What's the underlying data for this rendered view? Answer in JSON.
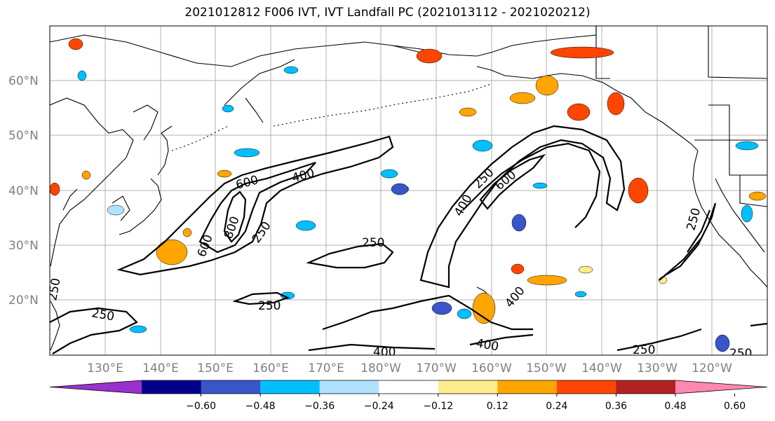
{
  "title": "2021012812 F006 IVT, IVT Landfall PC (2021013112 - 2021020212)",
  "map": {
    "projection": "PlateCarree",
    "extent": {
      "lon_min": 120,
      "lon_max": 250,
      "lat_min": 10,
      "lat_max": 70
    },
    "grid": true,
    "lat_labels": [
      "20°N",
      "30°N",
      "40°N",
      "50°N",
      "60°N"
    ],
    "lon_labels": [
      "130°E",
      "140°E",
      "150°E",
      "160°E",
      "170°E",
      "180°W",
      "170°W",
      "160°W",
      "150°W",
      "140°W",
      "130°W",
      "120°W"
    ],
    "contour_labels": [
      "250",
      "250",
      "250",
      "250",
      "250",
      "250",
      "250",
      "250",
      "400",
      "400",
      "400",
      "400",
      "400",
      "600",
      "600",
      "600",
      "800",
      "250"
    ]
  },
  "colorbar": {
    "ticks": [
      "−0.60",
      "−0.48",
      "−0.36",
      "−0.24",
      "−0.12",
      "0.12",
      "0.24",
      "0.36",
      "0.48",
      "0.60"
    ],
    "colors": [
      "#9932cc",
      "#00008b",
      "#3a55c8",
      "#00bfff",
      "#b0e2ff",
      "#ffffff",
      "#ffec8b",
      "#ffa500",
      "#ff4500",
      "#b22222",
      "#ff88b0"
    ],
    "extend": "both"
  }
}
